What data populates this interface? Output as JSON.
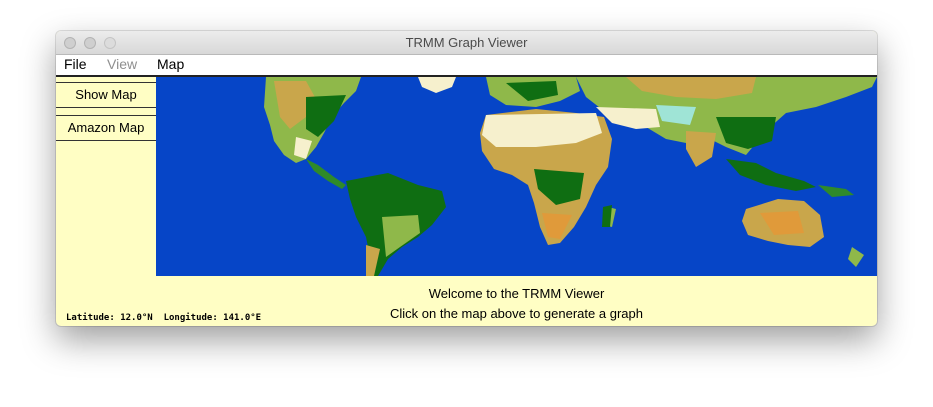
{
  "window": {
    "title": "TRMM Graph Viewer"
  },
  "menubar": {
    "file": "File",
    "view": "View",
    "map": "Map"
  },
  "sidebar": {
    "show_map": "Show Map",
    "amazon_map": "Amazon Map"
  },
  "map": {
    "icon": "world-land-cover-map",
    "colors": {
      "ocean": "#0645c7",
      "forest": "#0f6e12",
      "desert": "#f6f0cd",
      "savanna": "#c9a64b",
      "grassland": "#8fb84a"
    }
  },
  "status": {
    "welcome": "Welcome to the TRMM Viewer",
    "instruction": "Click on the map above to generate a graph",
    "latitude_label": "Latitude:",
    "latitude_value": "12.0°N",
    "longitude_label": "Longitude:",
    "longitude_value": "141.0°E"
  }
}
